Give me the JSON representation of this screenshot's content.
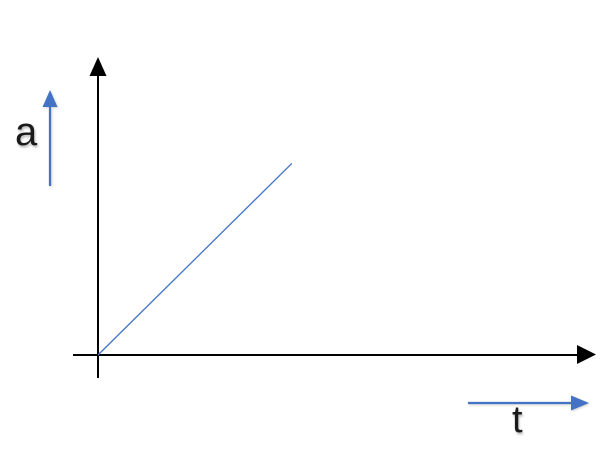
{
  "chart_data": {
    "type": "line",
    "title": "",
    "xlabel": "t",
    "ylabel": "a",
    "xlim": [
      0,
      1
    ],
    "ylim": [
      0,
      1
    ],
    "grid": false,
    "tick_labels": "none (axes are unlabeled schematic axes)",
    "legend": null,
    "series": [
      {
        "name": "a(t)",
        "color": "#4472C4",
        "points": [
          [
            0,
            0
          ],
          [
            0.39,
            0.645
          ]
        ],
        "description": "thin straight line starting at the origin and rising with constant positive slope (~45 degrees), i.e. linearly increasing acceleration over time"
      }
    ],
    "annotations": [
      "blue upward direction arrow beside the y-axis label 'a'",
      "blue rightward direction arrow above the x-axis label 't'"
    ]
  },
  "colors": {
    "background": "#FFFFFF",
    "axis": "#000000",
    "accent_blue": "#4472C4",
    "label_text": "#1A1A1A"
  },
  "icons": {
    "up_arrow": "▲ blue up-pointing direction arrow",
    "right_arrow": "▶ blue right-pointing direction arrow",
    "y_axis_arrowhead": "▲ black arrowhead at top of y-axis",
    "x_axis_arrowhead": "▶ black arrowhead at right of x-axis"
  }
}
